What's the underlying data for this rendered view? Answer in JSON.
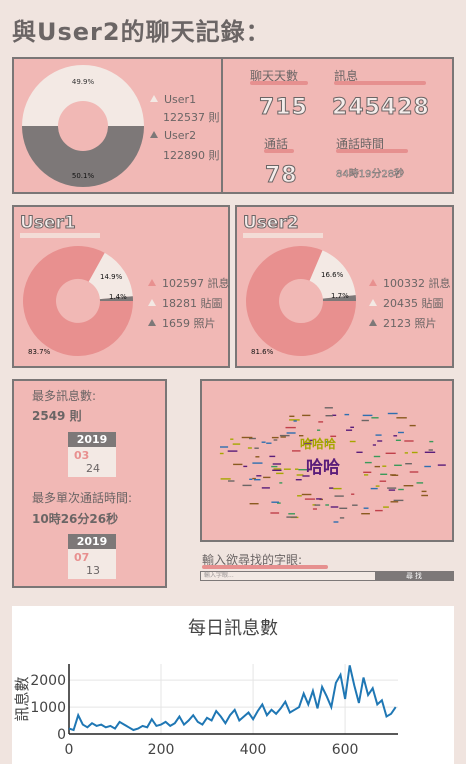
{
  "page": {
    "title": "與User2的聊天記錄："
  },
  "overview": {
    "donut": {
      "pct_user1": "49.9%",
      "pct_user2": "50.1%",
      "legend": [
        {
          "name": "User1",
          "count": "122537 則"
        },
        {
          "name": "User2",
          "count": "122890 則"
        }
      ]
    },
    "stats": {
      "days_label": "聊天天數",
      "days_value": "715",
      "messages_label": "訊息",
      "messages_value": "245428",
      "calls_label": "通話",
      "calls_value": "78",
      "call_time_label": "通話時間",
      "call_time_value": "84時19分28秒"
    }
  },
  "user1": {
    "name": "User1",
    "pct_main": "83.7%",
    "pct_sticker": "14.9%",
    "pct_photo": "1.4%",
    "rows": [
      {
        "value": "102597",
        "unit": "訊息"
      },
      {
        "value": "18281",
        "unit": "貼圖"
      },
      {
        "value": "1659",
        "unit": "照片"
      }
    ]
  },
  "user2": {
    "name": "User2",
    "pct_main": "81.6%",
    "pct_sticker": "16.6%",
    "pct_photo": "1.7%",
    "rows": [
      {
        "value": "100332",
        "unit": "訊息"
      },
      {
        "value": "20435",
        "unit": "貼圖"
      },
      {
        "value": "2123",
        "unit": "照片"
      }
    ]
  },
  "records": {
    "max_msg_label": "最多訊息數:",
    "max_msg_value": "2549 則",
    "max_msg_date": {
      "year": "2019",
      "month": "03",
      "day": "24"
    },
    "max_call_label": "最多單次通話時間:",
    "max_call_value": "10時26分26秒",
    "max_call_date": {
      "year": "2019",
      "month": "07",
      "day": "13"
    }
  },
  "wordcloud": {
    "word_big": "哈哈",
    "word_mid": "哈哈哈",
    "colors": [
      "#5a1d7a",
      "#a6a600"
    ]
  },
  "search": {
    "label": "輸入欲尋找的字眼:",
    "placeholder": "輸入字眼...",
    "button": "尋找"
  },
  "colors": {
    "pink": "#e8908f",
    "cream": "#f3e9e4",
    "gray": "#7d7878",
    "panel": "#f1b8b5",
    "line": "#1f77b4"
  },
  "chart_data": {
    "type": "line",
    "title": "每日訊息數",
    "xlabel": "",
    "ylabel": "訊息數",
    "xlim": [
      0,
      715
    ],
    "ylim": [
      0,
      2600
    ],
    "x_ticks": [
      0,
      200,
      400,
      600
    ],
    "y_ticks": [
      0,
      1000,
      2000
    ],
    "x": [
      0,
      10,
      20,
      30,
      40,
      50,
      60,
      70,
      80,
      90,
      100,
      110,
      120,
      130,
      140,
      150,
      160,
      170,
      180,
      190,
      200,
      210,
      220,
      230,
      240,
      250,
      260,
      270,
      280,
      290,
      300,
      310,
      320,
      330,
      340,
      350,
      360,
      370,
      380,
      390,
      400,
      410,
      420,
      430,
      440,
      450,
      460,
      470,
      480,
      490,
      500,
      510,
      520,
      530,
      540,
      550,
      560,
      570,
      580,
      590,
      600,
      610,
      620,
      630,
      640,
      650,
      660,
      670,
      680,
      690,
      700,
      710
    ],
    "series": [
      {
        "name": "",
        "values": [
          200,
          150,
          700,
          350,
          250,
          400,
          300,
          350,
          250,
          300,
          200,
          450,
          350,
          250,
          150,
          200,
          300,
          250,
          550,
          300,
          350,
          450,
          300,
          400,
          650,
          350,
          500,
          700,
          450,
          350,
          600,
          500,
          850,
          650,
          400,
          700,
          900,
          500,
          650,
          800,
          550,
          850,
          1100,
          700,
          900,
          750,
          950,
          1200,
          800,
          900,
          1000,
          1500,
          1100,
          1600,
          950,
          1750,
          1400,
          1000,
          1900,
          2200,
          1300,
          2549,
          1800,
          1150,
          2100,
          1450,
          1700,
          1100,
          1250,
          650,
          750,
          1000
        ]
      }
    ]
  }
}
